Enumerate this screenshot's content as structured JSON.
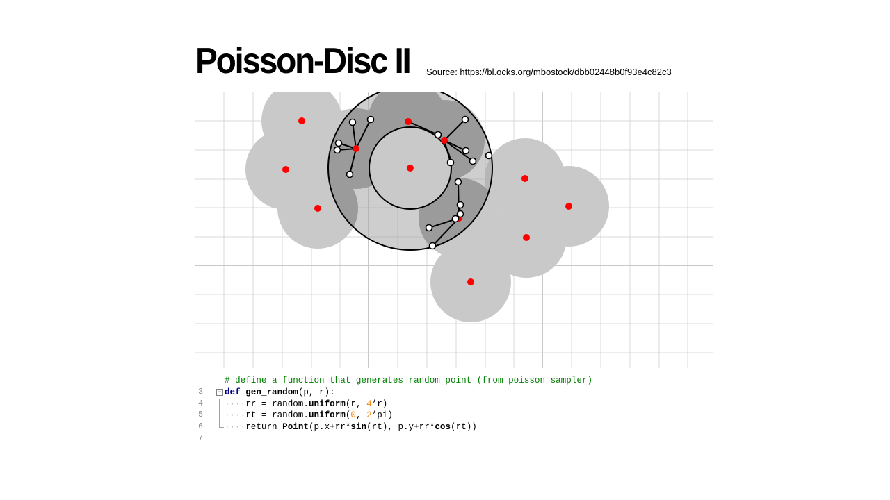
{
  "title": "Poisson-Disc II",
  "source": "Source: https://bl.ocks.org/mbostock/dbb02448b0f93e4c82c3",
  "colors": {
    "disc_fill": "#c9c9c9",
    "annulus_fill": "#8f8f8f",
    "grid_line": "#d8d8d8",
    "sample_point": "#ff0000",
    "candidate_point": "#ffffff",
    "comment": "#008000",
    "keyword": "#00008b",
    "number": "#ff8000"
  },
  "code": {
    "lines": [
      {
        "num": "3",
        "indent": "",
        "comment": "# define a function that generates random point (from poisson sampler)"
      },
      {
        "num": "4",
        "kw": "def",
        "fn": "gen_random",
        "rest": "(p, r):"
      },
      {
        "num": "5",
        "dots": "····",
        "a": "rr = random.",
        "b": "uniform",
        "c": "(r, ",
        "d": "4",
        "e": "*r)"
      },
      {
        "num": "6",
        "dots": "····",
        "a": "rt = random.",
        "b": "uniform",
        "c": "(",
        "d": "0",
        "e": ", ",
        "f": "2",
        "g": "*pi)"
      },
      {
        "num": "7",
        "dots": "····",
        "ret": "return ",
        "p1": "Point",
        "p2": "(p.x+rr*",
        "p3": "sin",
        "p4": "(rt), p.y+rr*",
        "p5": "cos",
        "p6": "(rt))"
      }
    ]
  }
}
